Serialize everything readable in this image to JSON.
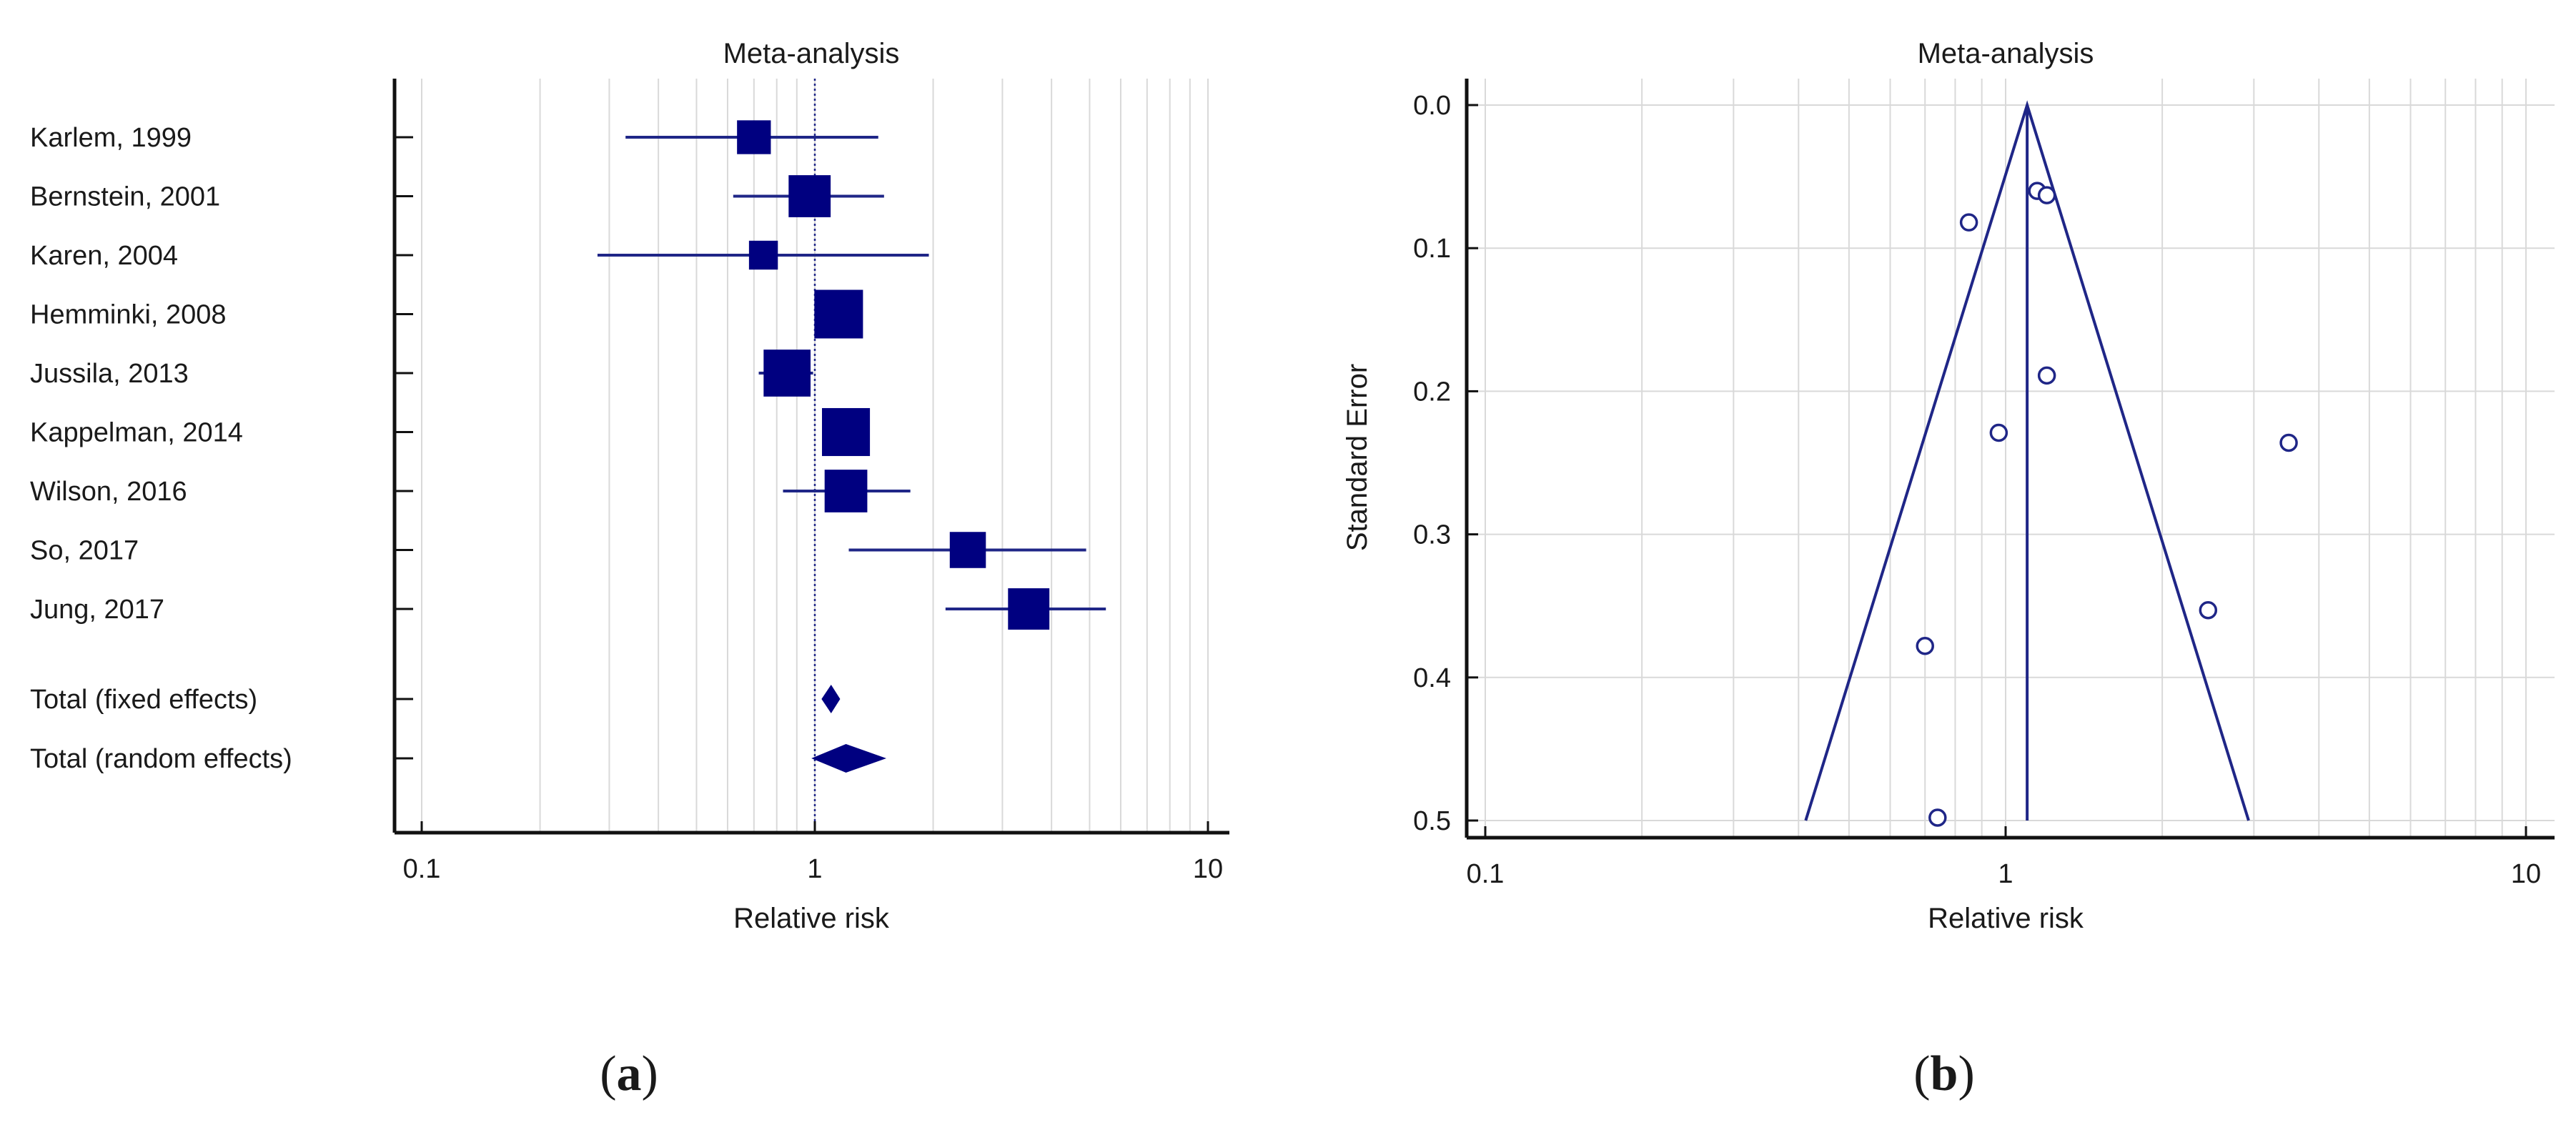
{
  "colors": {
    "marker": "#000080",
    "line": "#1f2687",
    "grid": "#d9d9d9",
    "axis": "#111111"
  },
  "chart_data": [
    {
      "type": "forest",
      "panel_label": "a",
      "title": "Meta-analysis",
      "xlabel": "Relative risk",
      "xscale": "log",
      "xlim": [
        0.1,
        10
      ],
      "xticks": [
        "0.1",
        "1",
        "10"
      ],
      "reference_line": 1,
      "studies": [
        {
          "label": "Karlem, 1999",
          "rr": 0.7,
          "lo": 0.33,
          "hi": 1.45,
          "weight": 0.55
        },
        {
          "label": "Bernstein, 2001",
          "rr": 0.97,
          "lo": 0.62,
          "hi": 1.5,
          "weight": 0.8
        },
        {
          "label": "Karen, 2004",
          "rr": 0.74,
          "lo": 0.28,
          "hi": 1.95,
          "weight": 0.4
        },
        {
          "label": "Hemminki, 2008",
          "rr": 1.15,
          "lo": 1.05,
          "hi": 1.26,
          "weight": 1.0
        },
        {
          "label": "Jussila, 2013",
          "rr": 0.85,
          "lo": 0.72,
          "hi": 0.99,
          "weight": 0.95
        },
        {
          "label": "Kappelman, 2014",
          "rr": 1.2,
          "lo": 1.07,
          "hi": 1.32,
          "weight": 0.98
        },
        {
          "label": "Wilson, 2016",
          "rr": 1.2,
          "lo": 0.83,
          "hi": 1.75,
          "weight": 0.82
        },
        {
          "label": "So, 2017",
          "rr": 2.45,
          "lo": 1.22,
          "hi": 4.9,
          "weight": 0.62
        },
        {
          "label": "Jung, 2017",
          "rr": 3.5,
          "lo": 2.15,
          "hi": 5.5,
          "weight": 0.78
        }
      ],
      "totals": [
        {
          "label": "Total (fixed effects)",
          "rr": 1.1,
          "lo": 1.04,
          "hi": 1.16
        },
        {
          "label": "Total (random effects)",
          "rr": 1.2,
          "lo": 0.98,
          "hi": 1.52
        }
      ]
    },
    {
      "type": "scatter",
      "subtype": "funnel",
      "panel_label": "b",
      "title": "Meta-analysis",
      "xlabel": "Relative risk",
      "ylabel": "Standard Error",
      "xscale": "log",
      "xlim": [
        0.1,
        10
      ],
      "ylim": [
        0,
        0.5
      ],
      "y_inverted": true,
      "xticks": [
        "0.1",
        "1",
        "10"
      ],
      "yticks": [
        "0.0",
        "0.1",
        "0.2",
        "0.3",
        "0.4",
        "0.5"
      ],
      "pooled_rr": 1.1,
      "points": [
        {
          "rr": 1.15,
          "se": 0.06
        },
        {
          "rr": 1.2,
          "se": 0.063
        },
        {
          "rr": 0.85,
          "se": 0.082
        },
        {
          "rr": 1.2,
          "se": 0.189
        },
        {
          "rr": 0.97,
          "se": 0.229
        },
        {
          "rr": 3.5,
          "se": 0.236
        },
        {
          "rr": 2.45,
          "se": 0.353
        },
        {
          "rr": 0.7,
          "se": 0.378
        },
        {
          "rr": 0.74,
          "se": 0.498
        }
      ]
    }
  ]
}
